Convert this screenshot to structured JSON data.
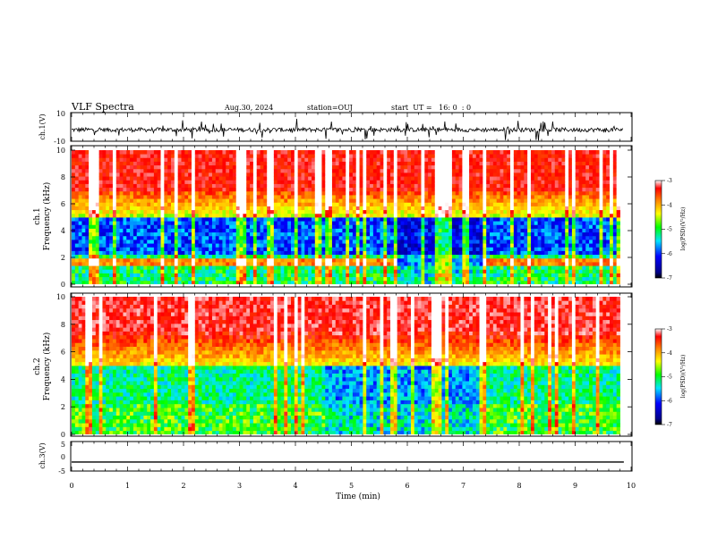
{
  "header": {
    "title": "VLF Spectra",
    "date": "Aug.30, 2024",
    "station": "station=OUJ",
    "start": "start  UT =   16: 0  : 0"
  },
  "chart_data": [
    {
      "type": "line",
      "panel": "ch1-waveform",
      "ylabel": "ch.1(V)",
      "ylim": [
        -10,
        10
      ],
      "y_ticks": [
        "10",
        "-10"
      ],
      "xlim": [
        0,
        10
      ],
      "description_value": "noisy waveform around -2 V"
    },
    {
      "type": "heatmap",
      "panel": "ch1-spectrogram",
      "ylabel": "ch.1\nFrequency (kHz)",
      "ylim": [
        0,
        10
      ],
      "y_ticks": [
        "0",
        "2",
        "4",
        "6",
        "8",
        "10"
      ],
      "xlim": [
        0,
        10
      ],
      "data_end_min": 9.8,
      "colorbar": {
        "label": "log(PSD)(V²/Hz)",
        "range": [
          -7,
          -3
        ],
        "ticks": [
          "-3",
          "-4",
          "-5",
          "-6",
          "-7"
        ]
      }
    },
    {
      "type": "heatmap",
      "panel": "ch2-spectrogram",
      "ylabel": "ch.2\nFrequency (kHz)",
      "ylim": [
        0,
        10
      ],
      "y_ticks": [
        "0",
        "2",
        "4",
        "6",
        "8",
        "10"
      ],
      "xlim": [
        0,
        10
      ],
      "data_end_min": 9.8,
      "colorbar": {
        "label": "log(PSD)(V²/Hz)",
        "range": [
          -7,
          -3
        ],
        "ticks": [
          "-3",
          "-4",
          "-5",
          "-6",
          "-7"
        ]
      }
    },
    {
      "type": "line",
      "panel": "ch3-waveform",
      "ylabel": "ch.3(V)",
      "ylim": [
        -5,
        5
      ],
      "y_ticks": [
        "5",
        "0",
        "-5"
      ],
      "xlim": [
        0,
        10
      ],
      "constant_value": -2
    }
  ],
  "xaxis": {
    "label": "Time (min)",
    "ticks": [
      "0",
      "1",
      "2",
      "3",
      "4",
      "5",
      "6",
      "7",
      "8",
      "9",
      "10"
    ]
  },
  "colors": {
    "low": "#00008b",
    "mid": "#00ff00",
    "high": "#ff0000",
    "top": "#ffffff"
  }
}
